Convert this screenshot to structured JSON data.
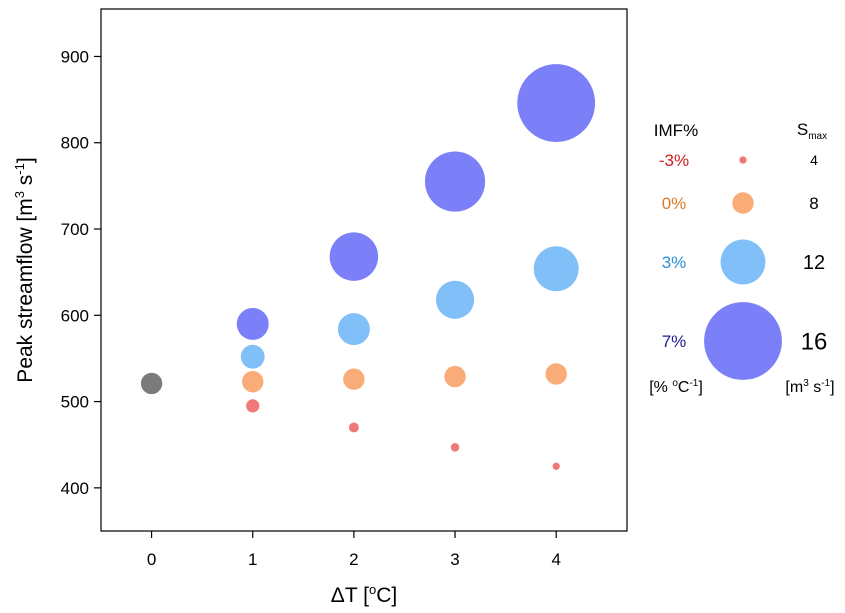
{
  "chart_data": {
    "type": "scatter",
    "xlabel_main": "ΔT [",
    "xlabel_sup": "o",
    "xlabel_tail": "C]",
    "ylabel_main": "Peak streamflow [m",
    "ylabel_sup1": "3",
    "ylabel_mid": " s",
    "ylabel_sup2": "-1",
    "ylabel_tail": "]",
    "xlim": [
      -0.5,
      4.7
    ],
    "ylim": [
      350,
      955
    ],
    "x_ticks": [
      0,
      1,
      2,
      3,
      4
    ],
    "y_ticks": [
      400,
      500,
      600,
      700,
      800,
      900
    ],
    "baseline": {
      "x": 0,
      "y": 521,
      "smax": 8,
      "color": "#7b7b7b"
    },
    "series": [
      {
        "name": "-3%",
        "color": "#f07878",
        "label_color": "#cc1f1f",
        "points": [
          {
            "x": 1,
            "y": 495,
            "smax": 6
          },
          {
            "x": 2,
            "y": 470,
            "smax": 5
          },
          {
            "x": 3,
            "y": 447,
            "smax": 4.5
          },
          {
            "x": 4,
            "y": 425,
            "smax": 4
          }
        ]
      },
      {
        "name": "0%",
        "color": "#f9ac78",
        "label_color": "#e07a28",
        "points": [
          {
            "x": 1,
            "y": 523,
            "smax": 8
          },
          {
            "x": 2,
            "y": 526,
            "smax": 8
          },
          {
            "x": 3,
            "y": 529,
            "smax": 8
          },
          {
            "x": 4,
            "y": 532,
            "smax": 8
          }
        ]
      },
      {
        "name": "3%",
        "color": "#80bff8",
        "label_color": "#2a8fd8",
        "points": [
          {
            "x": 1,
            "y": 552,
            "smax": 8.5
          },
          {
            "x": 2,
            "y": 584,
            "smax": 10
          },
          {
            "x": 3,
            "y": 618,
            "smax": 11
          },
          {
            "x": 4,
            "y": 654,
            "smax": 12
          }
        ]
      },
      {
        "name": "7%",
        "color": "#7b7ff8",
        "label_color": "#1a1a90",
        "points": [
          {
            "x": 1,
            "y": 590,
            "smax": 10
          },
          {
            "x": 2,
            "y": 668,
            "smax": 12.5
          },
          {
            "x": 3,
            "y": 755,
            "smax": 14
          },
          {
            "x": 4,
            "y": 846,
            "smax": 16
          }
        ]
      }
    ],
    "legend": {
      "header_imf": "IMF%",
      "header_smax_main": "S",
      "header_smax_sub": "max",
      "imf_unit_main": "[% ",
      "imf_unit_sup1": "o",
      "imf_unit_mid": "C",
      "imf_unit_sup2": "-1",
      "imf_unit_tail": "]",
      "smax_unit_main": "[m",
      "smax_unit_sup1": "3",
      "smax_unit_mid": " s",
      "smax_unit_sup2": "-1",
      "smax_unit_tail": "]",
      "entries": [
        {
          "imf": "-3%",
          "smax": "4",
          "color": "#f07878",
          "label_color": "#cc1f1f"
        },
        {
          "imf": "0%",
          "smax": "8",
          "color": "#f9ac78",
          "label_color": "#e07a28"
        },
        {
          "imf": "3%",
          "smax": "12",
          "color": "#80bff8",
          "label_color": "#2a8fd8"
        },
        {
          "imf": "7%",
          "smax": "16",
          "color": "#7b7ff8",
          "label_color": "#1a1a90"
        }
      ]
    }
  }
}
